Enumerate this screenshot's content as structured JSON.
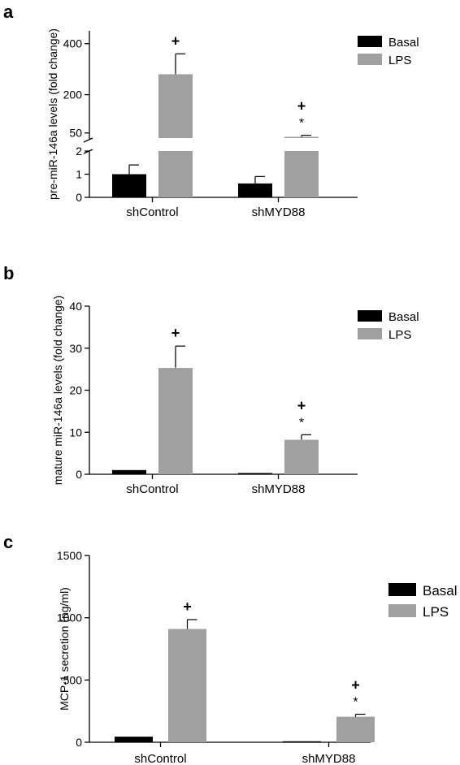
{
  "chart_data": [
    {
      "panel": "a",
      "type": "bar",
      "ylabel": "pre-miR-146a levels (fold change)",
      "categories": [
        "shControl",
        "shMYD88"
      ],
      "series": [
        {
          "name": "Basal",
          "color": "#000000",
          "values": [
            1.0,
            0.6
          ],
          "errors": [
            0.4,
            0.3
          ]
        },
        {
          "name": "LPS",
          "color": "#a0a0a0",
          "values": [
            280,
            35
          ],
          "errors": [
            80,
            6
          ]
        }
      ],
      "broken_axis": {
        "lower": [
          0,
          2
        ],
        "upper_ticks": [
          50,
          200,
          400
        ],
        "upper_range": [
          30,
          450
        ]
      },
      "yticks_lower": [
        0,
        1,
        2
      ],
      "significance": [
        {
          "category": "shControl",
          "series": "LPS",
          "marks": [
            "+"
          ]
        },
        {
          "category": "shMYD88",
          "series": "LPS",
          "marks": [
            "+",
            "*"
          ]
        }
      ],
      "legend_position": "top-right"
    },
    {
      "panel": "b",
      "type": "bar",
      "ylabel": "mature miR-146a levels (fold change)",
      "categories": [
        "shControl",
        "shMYD88"
      ],
      "series": [
        {
          "name": "Basal",
          "color": "#000000",
          "values": [
            1.0,
            0.3
          ],
          "errors": [
            0,
            0
          ]
        },
        {
          "name": "LPS",
          "color": "#a0a0a0",
          "values": [
            25.3,
            8.2
          ],
          "errors": [
            5.2,
            1.2
          ]
        }
      ],
      "ylim": [
        0,
        40
      ],
      "yticks": [
        0,
        10,
        20,
        30,
        40
      ],
      "significance": [
        {
          "category": "shControl",
          "series": "LPS",
          "marks": [
            "+"
          ]
        },
        {
          "category": "shMYD88",
          "series": "LPS",
          "marks": [
            "+",
            "*"
          ]
        }
      ],
      "legend_position": "top-right"
    },
    {
      "panel": "c",
      "type": "bar",
      "ylabel": "MCP-1 secretion (ng/ml)",
      "categories": [
        "shControl",
        "shMYD88"
      ],
      "series": [
        {
          "name": "Basal",
          "color": "#000000",
          "values": [
            45,
            8
          ],
          "errors": [
            0,
            0
          ]
        },
        {
          "name": "LPS",
          "color": "#a0a0a0",
          "values": [
            910,
            205
          ],
          "errors": [
            75,
            20
          ]
        }
      ],
      "ylim": [
        0,
        1500
      ],
      "yticks": [
        0,
        500,
        1000,
        1500
      ],
      "significance": [
        {
          "category": "shControl",
          "series": "LPS",
          "marks": [
            "+"
          ]
        },
        {
          "category": "shMYD88",
          "series": "LPS",
          "marks": [
            "+",
            "*"
          ]
        }
      ],
      "legend_position": "top-right"
    }
  ]
}
